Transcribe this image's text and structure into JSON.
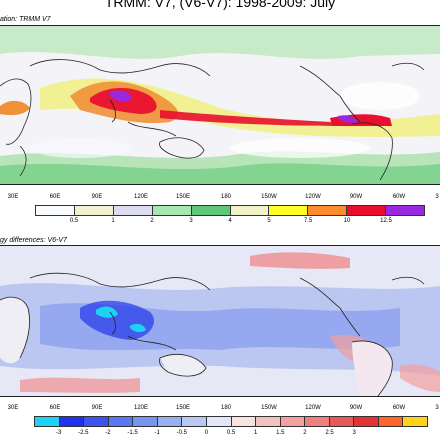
{
  "title": "TRMM: V7, (V6-V7): 1998-2009: July",
  "top_panel": {
    "label": "ation: TRMM V7"
  },
  "bottom_panel": {
    "label": "gy differences: V6-V7"
  },
  "longitude_ticks": [
    "30E",
    "60E",
    "90E",
    "120E",
    "150E",
    "180",
    "150W",
    "120W",
    "90W",
    "60W",
    "3"
  ],
  "top_colorbar": {
    "labels": [
      "0.5",
      "1",
      "2",
      "3",
      "4",
      "5",
      "7.5",
      "10",
      "12.5"
    ],
    "colors": [
      "#f8fcff",
      "#f2f2d2",
      "#dcdcf0",
      "#a8e6b0",
      "#5cc878",
      "#f2f2c8",
      "#ffff28",
      "#ff8c2c",
      "#ec0c2c",
      "#9a28e0"
    ]
  },
  "bottom_colorbar": {
    "labels": [
      "-3",
      "-2.5",
      "-2",
      "-1.5",
      "-1",
      "-0.5",
      "0",
      "0.5",
      "1",
      "1.5",
      "2",
      "2.5",
      "3"
    ],
    "colors": [
      "#1ed2f4",
      "#1e32f0",
      "#3c55f0",
      "#5a78f0",
      "#7894f0",
      "#96b0f0",
      "#bcc8f4",
      "#e2e6f8",
      "#f8e2e2",
      "#f4c0c0",
      "#f4a0a0",
      "#f08080",
      "#e65a5a",
      "#e63232",
      "#ff6428",
      "#ffd21e"
    ]
  },
  "map_colors": {
    "ocean_dry": "#f2f6fc",
    "land": "#e8e8ec",
    "coast": "#222222",
    "diff_neutral": "#e6e8f6"
  }
}
